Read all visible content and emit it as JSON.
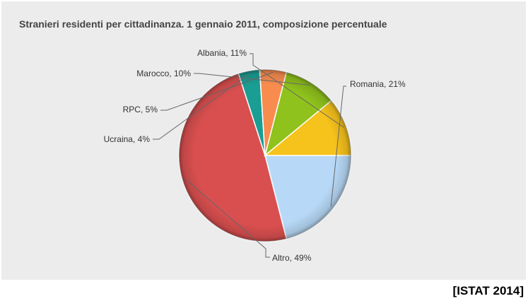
{
  "chart_data": {
    "type": "pie",
    "title": "Stranieri residenti per cittadinanza. 1 gennaio 2011, composizione percentuale",
    "slices": [
      {
        "label": "Romania, 21%",
        "name": "Romania",
        "value": 21,
        "color": "#b7d9f7"
      },
      {
        "label": "Altro, 49%",
        "name": "Altro",
        "value": 49,
        "color": "#d94f4f"
      },
      {
        "label": "Ucraina, 4%",
        "name": "Ucraina",
        "value": 4,
        "color": "#1a9e94"
      },
      {
        "label": "RPC, 5%",
        "name": "RPC",
        "value": 5,
        "color": "#f88c4f"
      },
      {
        "label": "Marocco, 10%",
        "name": "Marocco",
        "value": 10,
        "color": "#8fc21c"
      },
      {
        "label": "Albania, 11%",
        "name": "Albania",
        "value": 11,
        "color": "#f6c21c"
      }
    ],
    "start_angle_deg": 0,
    "direction": "clockwise",
    "legend": "none"
  },
  "source": "[ISTAT 2014]"
}
